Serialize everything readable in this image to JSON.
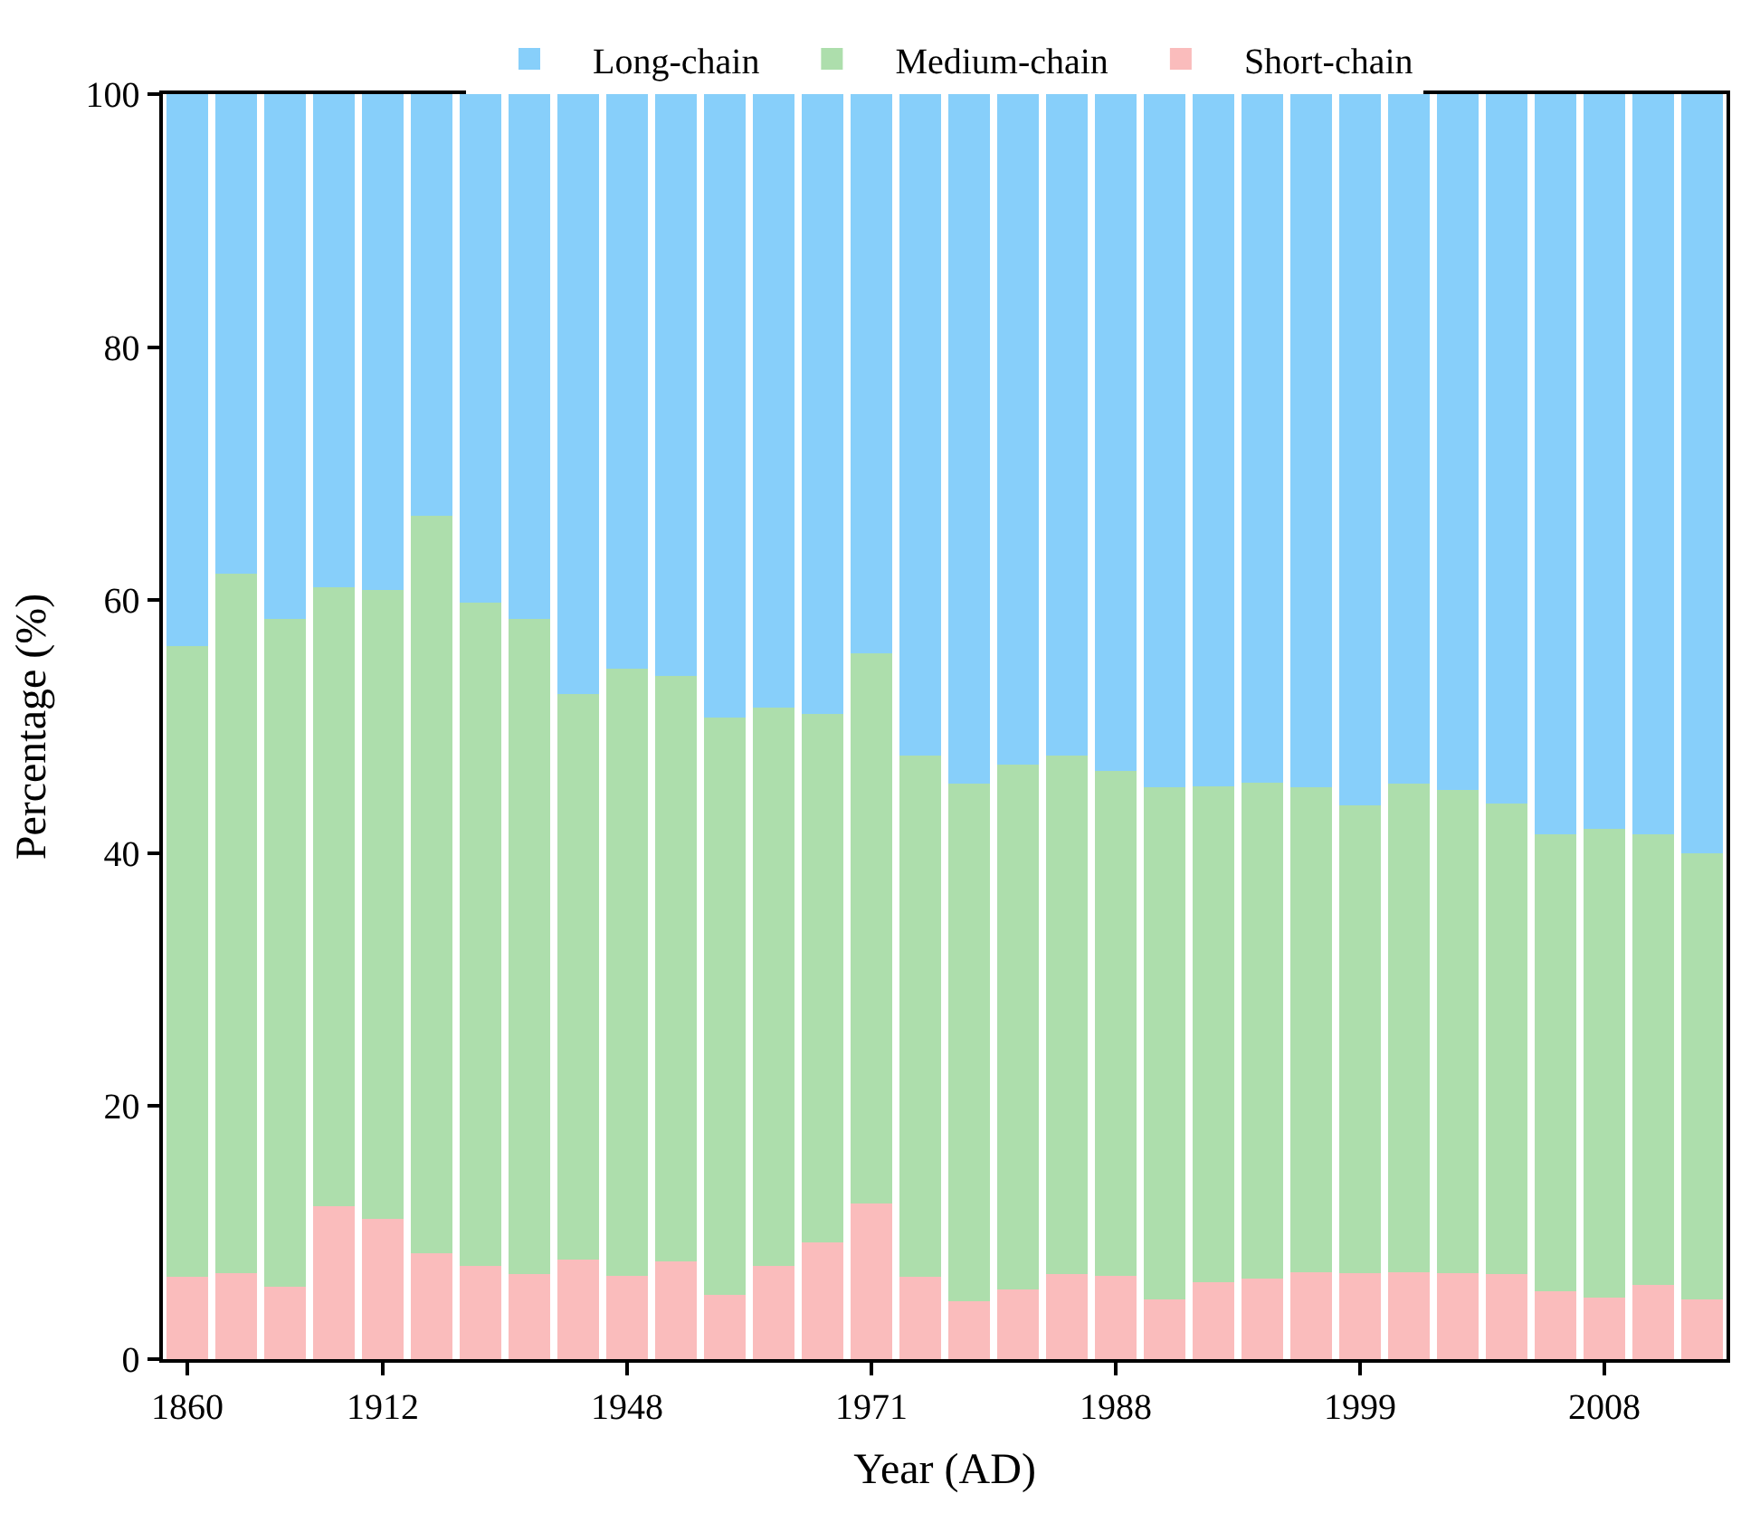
{
  "chart_data": {
    "type": "bar",
    "stacked": true,
    "xlabel": "Year (AD)",
    "ylabel": "Percentage (%)",
    "categories": [
      "1860",
      null,
      null,
      null,
      "1912",
      null,
      null,
      null,
      null,
      "1948",
      null,
      null,
      null,
      null,
      "1971",
      null,
      null,
      null,
      null,
      "1988",
      null,
      null,
      null,
      null,
      "1999",
      null,
      null,
      null,
      null,
      "2008",
      null,
      null
    ],
    "ylim": [
      0,
      100
    ],
    "yticks": [
      0,
      20,
      40,
      60,
      80,
      100
    ],
    "legend": "top",
    "series": [
      {
        "name": "Short-chain",
        "color": "#fabcbc",
        "values": [
          6.5,
          6.8,
          5.7,
          12.1,
          11.1,
          8.4,
          7.4,
          6.7,
          7.9,
          6.6,
          7.7,
          5.1,
          7.4,
          9.2,
          12.3,
          6.5,
          4.6,
          5.5,
          6.7,
          6.6,
          4.7,
          6.1,
          6.4,
          6.9,
          6.8,
          6.9,
          6.8,
          6.7,
          5.4,
          4.9,
          5.9,
          4.7
        ]
      },
      {
        "name": "Medium-chain",
        "color": "#addeac",
        "values": [
          49.9,
          55.3,
          52.8,
          48.9,
          49.7,
          58.3,
          52.4,
          51.8,
          44.7,
          48.0,
          46.3,
          45.6,
          44.1,
          41.8,
          43.5,
          41.2,
          40.9,
          41.5,
          41.0,
          39.9,
          40.5,
          39.2,
          39.2,
          38.3,
          37.0,
          38.6,
          38.2,
          37.2,
          36.1,
          37.0,
          35.6,
          35.3
        ]
      },
      {
        "name": "Long-chain",
        "color": "#87cffa",
        "values": [
          43.6,
          37.9,
          41.5,
          39.0,
          39.2,
          33.3,
          40.2,
          41.5,
          47.4,
          45.4,
          46.0,
          49.3,
          48.5,
          49.0,
          44.2,
          52.3,
          54.5,
          53.0,
          52.3,
          53.5,
          54.8,
          54.7,
          54.4,
          54.8,
          56.2,
          54.5,
          55.0,
          56.1,
          58.5,
          58.1,
          58.5,
          60.0
        ]
      }
    ]
  }
}
